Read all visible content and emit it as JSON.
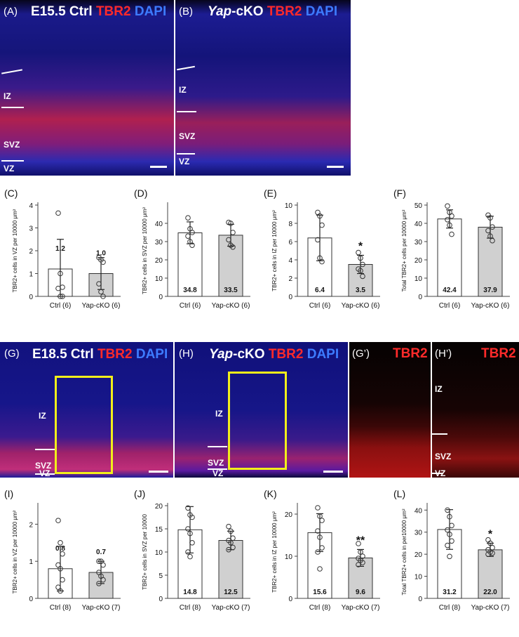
{
  "row1": {
    "panelA": {
      "label": "(A)",
      "title_parts": [
        {
          "text": "E15.5 Ctrl ",
          "color": "white",
          "italic": false
        },
        {
          "text": "TBR2 ",
          "color": "red",
          "italic": false
        },
        {
          "text": "DAPI",
          "color": "blue",
          "italic": false
        }
      ],
      "zones": [
        "IZ",
        "SVZ",
        "VZ"
      ]
    },
    "panelB": {
      "label": "(B)",
      "title_parts": [
        {
          "text": "Yap",
          "color": "white",
          "italic": true
        },
        {
          "text": "-cKO ",
          "color": "white",
          "italic": false
        },
        {
          "text": "TBR2 ",
          "color": "red",
          "italic": false
        },
        {
          "text": "DAPI",
          "color": "blue",
          "italic": false
        }
      ],
      "zones": [
        "IZ",
        "SVZ",
        "VZ"
      ]
    }
  },
  "row3": {
    "panelG": {
      "label": "(G)",
      "title_parts": [
        {
          "text": "E18.5 Ctrl ",
          "color": "white",
          "italic": false
        },
        {
          "text": "TBR2 ",
          "color": "red",
          "italic": false
        },
        {
          "text": "DAPI",
          "color": "blue",
          "italic": false
        }
      ],
      "zones": [
        "IZ",
        "SVZ",
        "VZ"
      ]
    },
    "panelH": {
      "label": "(H)",
      "title_parts": [
        {
          "text": "Yap",
          "color": "white",
          "italic": true
        },
        {
          "text": "-cKO ",
          "color": "white",
          "italic": false
        },
        {
          "text": "TBR2 ",
          "color": "red",
          "italic": false
        },
        {
          "text": "DAPI",
          "color": "blue",
          "italic": false
        }
      ],
      "zones": [
        "IZ",
        "SVZ",
        "VZ"
      ]
    },
    "panelGp": {
      "label": "(G’)",
      "title": "TBR2"
    },
    "panelHp": {
      "label": "(H’)",
      "title": "TBR2",
      "zones": [
        "IZ",
        "SVZ",
        "VZ"
      ]
    }
  },
  "chart_data": [
    {
      "panel": "(C)",
      "type": "bar",
      "categories": [
        "Ctrl (6)",
        "Yap-cKO (6)"
      ],
      "values": [
        1.2,
        1.0
      ],
      "value_labels": [
        "1.2",
        "1.0"
      ],
      "label_pos": "top",
      "errors": [
        1.3,
        0.7
      ],
      "points": [
        [
          3.65,
          1.0,
          0.4,
          0.35,
          0.0,
          0.0
        ],
        [
          1.7,
          1.6,
          1.5,
          0.55,
          0.2,
          0.0
        ]
      ],
      "ylabel": "TBR2+ cells in VZ per 10000 μm²",
      "ylim": [
        0,
        4
      ],
      "yticks": [
        0,
        1,
        2,
        3,
        4
      ],
      "ytick_labels": [
        "0",
        "1",
        "2",
        "3",
        "4"
      ],
      "sig": ""
    },
    {
      "panel": "(D)",
      "type": "bar",
      "categories": [
        "Ctrl (6)",
        "Yap-cKO (6)"
      ],
      "values": [
        34.8,
        33.5
      ],
      "value_labels": [
        "34.8",
        "33.5"
      ],
      "label_pos": "bottom",
      "errors": [
        6,
        6
      ],
      "points": [
        [
          43,
          37,
          35,
          33,
          30,
          28
        ],
        [
          40.5,
          40,
          35,
          31,
          28,
          27
        ]
      ],
      "ylabel": "TBR2+ cells in SVZ per 10000 μm²",
      "ylim": [
        0,
        50
      ],
      "yticks": [
        0,
        10,
        20,
        30,
        40
      ],
      "ytick_labels": [
        "0",
        "10",
        "20",
        "30",
        "40"
      ],
      "sig": ""
    },
    {
      "panel": "(E)",
      "type": "bar",
      "categories": [
        "Ctrl (6)",
        "Yap-cKO (6)"
      ],
      "values": [
        6.4,
        3.5
      ],
      "value_labels": [
        "6.4",
        "3.5"
      ],
      "label_pos": "bottom",
      "errors": [
        2.5,
        1.0
      ],
      "points": [
        [
          9.2,
          8.8,
          7.8,
          6.2,
          4.2,
          3.8
        ],
        [
          4.8,
          4.2,
          3.5,
          3.0,
          2.8,
          2.2
        ]
      ],
      "ylabel": "TBR2+ cells in IZ per 10000 μm²",
      "ylim": [
        0,
        10
      ],
      "yticks": [
        0,
        2,
        4,
        6,
        8,
        10
      ],
      "ytick_labels": [
        "0",
        "2",
        "4",
        "6",
        "8",
        "10"
      ],
      "sig": "*"
    },
    {
      "panel": "(F)",
      "type": "bar",
      "categories": [
        "Ctrl (6)",
        "Yap-cKO (6)"
      ],
      "values": [
        42.4,
        37.9
      ],
      "value_labels": [
        "42.4",
        "37.9"
      ],
      "label_pos": "bottom",
      "errors": [
        5,
        6
      ],
      "points": [
        [
          49.5,
          46,
          44,
          42,
          39,
          34
        ],
        [
          44.5,
          43,
          38,
          36,
          33,
          30.5
        ]
      ],
      "ylabel": "Total TBR2+ cells per 10000 μm²",
      "ylim": [
        0,
        50
      ],
      "yticks": [
        0,
        10,
        20,
        30,
        40,
        50
      ],
      "ytick_labels": [
        "0",
        "10",
        "20",
        "30",
        "40",
        "50"
      ],
      "sig": ""
    },
    {
      "panel": "(I)",
      "type": "bar",
      "categories": [
        "Ctrl (8)",
        "Yap-cKO (7)"
      ],
      "values": [
        0.8,
        0.7
      ],
      "value_labels": [
        "0.8",
        "0.7"
      ],
      "label_pos": "top",
      "errors": [
        0.6,
        0.3
      ],
      "points": [
        [
          2.1,
          1.5,
          1.2,
          0.9,
          0.8,
          0.5,
          0.3,
          0.2
        ],
        [
          1.0,
          1.0,
          0.9,
          0.7,
          0.6,
          0.5,
          0.4
        ]
      ],
      "ylabel": "TBR2+ cells in VZ per 10000 μm²",
      "ylim": [
        0,
        2.5
      ],
      "yticks": [
        0,
        1,
        2
      ],
      "ytick_labels": [
        "0",
        "1",
        "2"
      ],
      "sig": ""
    },
    {
      "panel": "(J)",
      "type": "bar",
      "categories": [
        "Ctrl (8)",
        "Yap-cKO (7)"
      ],
      "values": [
        14.8,
        12.5
      ],
      "value_labels": [
        "14.8",
        "12.5"
      ],
      "label_pos": "bottom",
      "errors": [
        5,
        2
      ],
      "points": [
        [
          19.5,
          18,
          17.5,
          15,
          14,
          12,
          10,
          9
        ],
        [
          15.5,
          14.5,
          13,
          12.5,
          12,
          11,
          10.5
        ]
      ],
      "ylabel": "TBR2+ cells in SVZ per 10000",
      "ylim": [
        0,
        20
      ],
      "yticks": [
        0,
        5,
        10,
        15,
        20
      ],
      "ytick_labels": [
        "0",
        "5",
        "10",
        "15",
        "20"
      ],
      "sig": ""
    },
    {
      "panel": "(K)",
      "type": "bar",
      "categories": [
        "Ctrl (8)",
        "Yap-cKO (7)"
      ],
      "values": [
        15.6,
        9.6
      ],
      "value_labels": [
        "15.6",
        "9.6"
      ],
      "label_pos": "bottom",
      "errors": [
        4.5,
        2
      ],
      "points": [
        [
          21.5,
          19.5,
          18.5,
          16,
          14.5,
          12,
          11,
          7
        ],
        [
          13,
          11,
          10,
          9.5,
          9,
          8.5,
          8
        ]
      ],
      "ylabel": "TBR2+ cells in IZ per 10000 μm²",
      "ylim": [
        0,
        22
      ],
      "yticks": [
        0,
        10,
        20
      ],
      "ytick_labels": [
        "0",
        "10",
        "20"
      ],
      "sig": "**"
    },
    {
      "panel": "(L)",
      "type": "bar",
      "categories": [
        "Ctrl (8)",
        "Yap-cKO (7)"
      ],
      "values": [
        31.2,
        22.0
      ],
      "value_labels": [
        "31.2",
        "22.0"
      ],
      "label_pos": "bottom",
      "errors": [
        9,
        3
      ],
      "points": [
        [
          40,
          37,
          33,
          31,
          29,
          26,
          24,
          19
        ],
        [
          26.5,
          25,
          23,
          22,
          21,
          20.5,
          20
        ]
      ],
      "ylabel": "Total TBR2+ cells in per10000 μm²",
      "ylim": [
        0,
        42
      ],
      "yticks": [
        0,
        10,
        20,
        30,
        40
      ],
      "ytick_labels": [
        "0",
        "10",
        "20",
        "30",
        "40"
      ],
      "sig": "*"
    }
  ],
  "colors": {
    "ctrl_bar": "#ffffff",
    "cko_bar": "#d0d0d0",
    "title_red": "#ff2a2a",
    "title_blue": "#3d7bff",
    "box": "#f2ef1a"
  }
}
